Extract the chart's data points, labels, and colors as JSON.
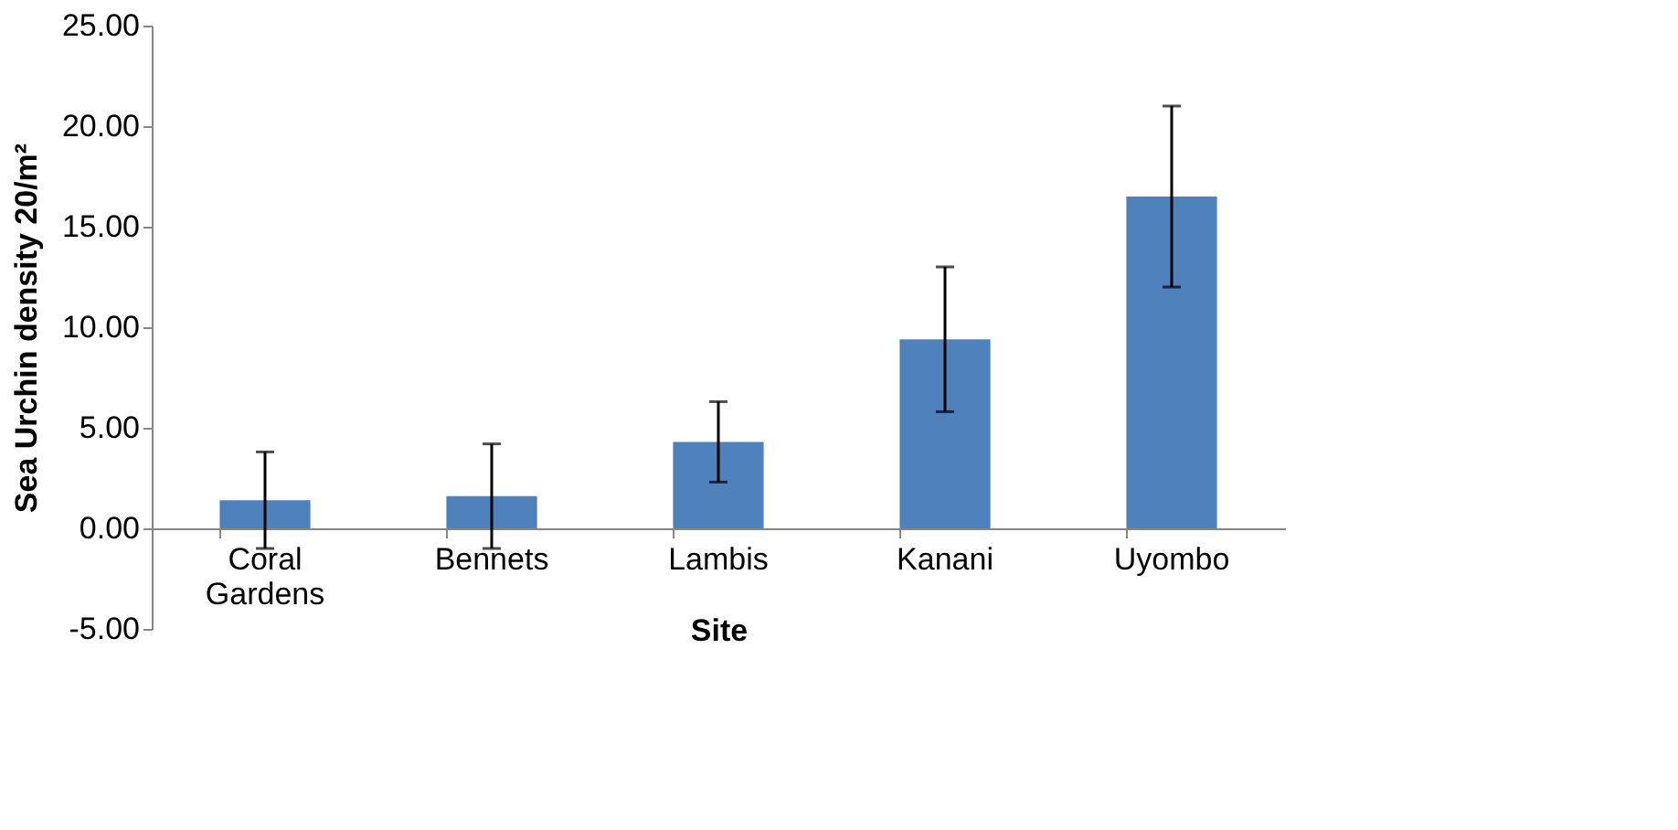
{
  "chart_data": {
    "type": "bar",
    "xlabel": "Site",
    "ylabel": "Sea Urchin density 20/m²",
    "categories": [
      "Coral Gardens",
      "Bennets",
      "Lambis",
      "Kanani",
      "Uyombo"
    ],
    "values": [
      1.4,
      1.6,
      4.3,
      9.4,
      16.5
    ],
    "errors": [
      2.4,
      2.6,
      2.0,
      3.6,
      4.5
    ],
    "color": "#4f81bd",
    "ylim": [
      -5,
      25
    ],
    "yticks": [
      {
        "value": -5,
        "label": "-5.00"
      },
      {
        "value": 0,
        "label": "0.00"
      },
      {
        "value": 5,
        "label": "5.00"
      },
      {
        "value": 10,
        "label": "10.00"
      },
      {
        "value": 15,
        "label": "15.00"
      },
      {
        "value": 20,
        "label": "20.00"
      },
      {
        "value": 25,
        "label": "25.00"
      }
    ],
    "grid": false
  }
}
